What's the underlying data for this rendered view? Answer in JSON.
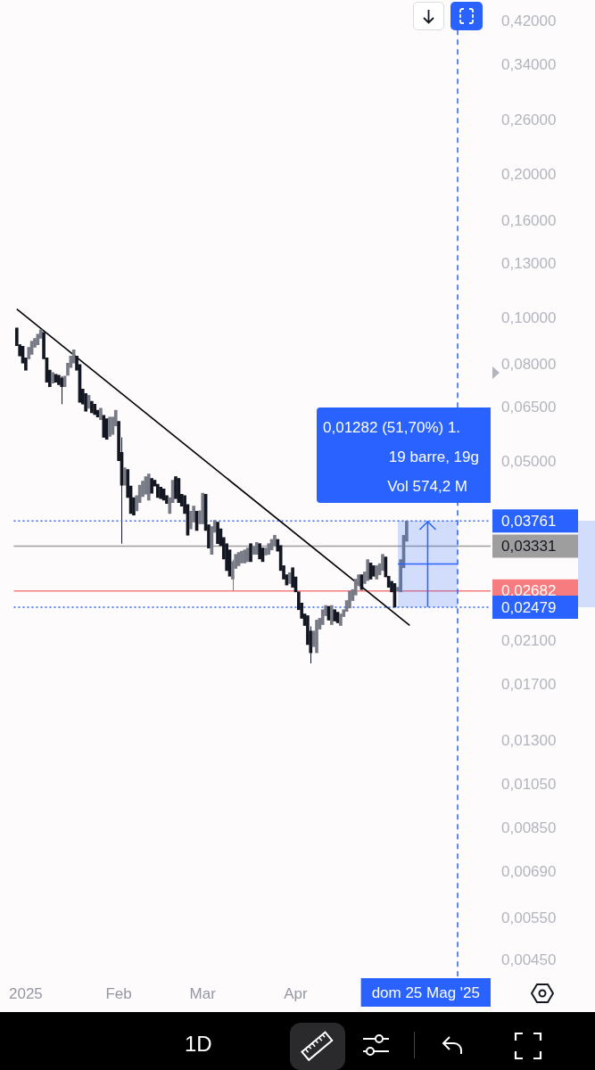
{
  "chart_data": {
    "type": "candlestick",
    "log": true,
    "xlim": [
      "2024-12-28",
      "2025-06-05"
    ],
    "xticks": [
      {
        "value": "2025-01-01",
        "label": "2025"
      },
      {
        "value": "2025-02-01",
        "label": "Feb"
      },
      {
        "value": "2025-03-01",
        "label": "Mar"
      },
      {
        "value": "2025-04-01",
        "label": "Apr"
      }
    ],
    "ylim": [
      0.00417,
      0.423
    ],
    "yticks": [
      {
        "value": 0.42,
        "label": "0,42000"
      },
      {
        "value": 0.34,
        "label": "0,34000"
      },
      {
        "value": 0.26,
        "label": "0,26000"
      },
      {
        "value": 0.2,
        "label": "0,20000"
      },
      {
        "value": 0.16,
        "label": "0,16000"
      },
      {
        "value": 0.13,
        "label": "0,13000"
      },
      {
        "value": 0.1,
        "label": "0,10000"
      },
      {
        "value": 0.08,
        "label": "0,08000"
      },
      {
        "value": 0.065,
        "label": "0,06500"
      },
      {
        "value": 0.05,
        "label": "0,05000"
      },
      {
        "value": 0.021,
        "label": "0,02100"
      },
      {
        "value": 0.017,
        "label": "0,01700"
      },
      {
        "value": 0.013,
        "label": "0,01300"
      },
      {
        "value": 0.0105,
        "label": "0,01050"
      },
      {
        "value": 0.0085,
        "label": "0,00850"
      },
      {
        "value": 0.0069,
        "label": "0,00690"
      },
      {
        "value": 0.0055,
        "label": "0,00550"
      },
      {
        "value": 0.0045,
        "label": "0,00450"
      }
    ],
    "series": [
      {
        "colors": [
          "#131722",
          "#131722",
          "#131722",
          "#131722",
          "#787b86",
          "#787b86",
          "#787b86",
          "#787b86",
          "#787b86",
          "#131722",
          "#131722",
          "#131722",
          "#787b86",
          "#131722",
          "#131722",
          "#131722",
          "#787b86",
          "#787b86",
          "#787b86",
          "#787b86",
          "#131722",
          "#131722",
          "#131722",
          "#131722",
          "#787b86",
          "#131722",
          "#131722",
          "#131722",
          "#787b86",
          "#131722",
          "#131722",
          "#787b86",
          "#787b86",
          "#787b86",
          "#131722",
          "#131722",
          "#787b86",
          "#131722",
          "#131722",
          "#131722",
          "#787b86",
          "#787b86",
          "#787b86",
          "#787b86",
          "#787b86",
          "#131722",
          "#131722",
          "#131722",
          "#131722",
          "#131722",
          "#131722",
          "#787b86",
          "#787b86",
          "#131722",
          "#131722",
          "#131722",
          "#131722",
          "#131722",
          "#787b86",
          "#787b86",
          "#131722",
          "#787b86",
          "#787b86",
          "#131722",
          "#131722",
          "#787b86",
          "#787b86",
          "#131722",
          "#131722",
          "#131722",
          "#131722",
          "#131722",
          "#787b86",
          "#787b86",
          "#787b86",
          "#787b86",
          "#787b86",
          "#787b86",
          "#131722",
          "#787b86",
          "#787b86",
          "#131722",
          "#131722",
          "#787b86",
          "#787b86",
          "#787b86",
          "#787b86",
          "#131722",
          "#131722",
          "#131722",
          "#131722",
          "#787b86",
          "#131722",
          "#131722",
          "#131722",
          "#131722",
          "#131722",
          "#131722",
          "#131722",
          "#787b86",
          "#787b86",
          "#787b86",
          "#787b86",
          "#787b86",
          "#131722",
          "#787b86",
          "#131722",
          "#131722",
          "#787b86",
          "#787b86",
          "#787b86",
          "#787b86",
          "#787b86",
          "#787b86",
          "#787b86",
          "#131722",
          "#787b86",
          "#787b86",
          "#131722",
          "#131722",
          "#787b86",
          "#787b86",
          "#787b86",
          "#131722",
          "#131722",
          "#131722",
          "#131722",
          "#787b86",
          "#787b86",
          "#787b86",
          "#787b86"
        ],
        "x": [
          "2024-12-29",
          "2024-12-30",
          "2024-12-31",
          "2025-01-01",
          "2025-01-02",
          "2025-01-03",
          "2025-01-04",
          "2025-01-05",
          "2025-01-06",
          "2025-01-07",
          "2025-01-08",
          "2025-01-09",
          "2025-01-10",
          "2025-01-11",
          "2025-01-12",
          "2025-01-13",
          "2025-01-14",
          "2025-01-15",
          "2025-01-16",
          "2025-01-17",
          "2025-01-18",
          "2025-01-19",
          "2025-01-20",
          "2025-01-21",
          "2025-01-22",
          "2025-01-23",
          "2025-01-24",
          "2025-01-25",
          "2025-01-26",
          "2025-01-27",
          "2025-01-28",
          "2025-01-29",
          "2025-01-30",
          "2025-01-31",
          "2025-02-01",
          "2025-02-02",
          "2025-02-03",
          "2025-02-04",
          "2025-02-05",
          "2025-02-06",
          "2025-02-07",
          "2025-02-08",
          "2025-02-09",
          "2025-02-10",
          "2025-02-11",
          "2025-02-12",
          "2025-02-13",
          "2025-02-14",
          "2025-02-15",
          "2025-02-16",
          "2025-02-17",
          "2025-02-18",
          "2025-02-19",
          "2025-02-20",
          "2025-02-21",
          "2025-02-22",
          "2025-02-23",
          "2025-02-24",
          "2025-02-25",
          "2025-02-26",
          "2025-02-27",
          "2025-02-28",
          "2025-03-01",
          "2025-03-02",
          "2025-03-03",
          "2025-03-04",
          "2025-03-05",
          "2025-03-06",
          "2025-03-07",
          "2025-03-08",
          "2025-03-09",
          "2025-03-10",
          "2025-03-11",
          "2025-03-12",
          "2025-03-13",
          "2025-03-14",
          "2025-03-15",
          "2025-03-16",
          "2025-03-17",
          "2025-03-18",
          "2025-03-19",
          "2025-03-20",
          "2025-03-21",
          "2025-03-22",
          "2025-03-23",
          "2025-03-24",
          "2025-03-25",
          "2025-03-26",
          "2025-03-27",
          "2025-03-28",
          "2025-03-29",
          "2025-03-30",
          "2025-03-31",
          "2025-04-01",
          "2025-04-02",
          "2025-04-03",
          "2025-04-04",
          "2025-04-05",
          "2025-04-06",
          "2025-04-07",
          "2025-04-08",
          "2025-04-09",
          "2025-04-10",
          "2025-04-11",
          "2025-04-12",
          "2025-04-13",
          "2025-04-14",
          "2025-04-15",
          "2025-04-16",
          "2025-04-17",
          "2025-04-18",
          "2025-04-19",
          "2025-04-20",
          "2025-04-21",
          "2025-04-22",
          "2025-04-23",
          "2025-04-24",
          "2025-04-25",
          "2025-04-26",
          "2025-04-27",
          "2025-04-28",
          "2025-04-29",
          "2025-04-30",
          "2025-05-01",
          "2025-05-02",
          "2025-05-03",
          "2025-05-04",
          "2025-05-05",
          "2025-05-06",
          "2025-05-07",
          "2025-05-08"
        ],
        "ohlc": [
          [
            0.0955,
            0.0955,
            0.0877,
            0.0877
          ],
          [
            0.0881,
            0.0881,
            0.0834,
            0.0834
          ],
          [
            0.0874,
            0.0874,
            0.0806,
            0.0806
          ],
          [
            0.0827,
            0.0827,
            0.0779,
            0.0779
          ],
          [
            0.0823,
            0.087,
            0.0823,
            0.087
          ],
          [
            0.0841,
            0.0896,
            0.0841,
            0.0896
          ],
          [
            0.087,
            0.0908,
            0.087,
            0.0908
          ],
          [
            0.0881,
            0.0927,
            0.0881,
            0.0927
          ],
          [
            0.0908,
            0.0947,
            0.0908,
            0.0947
          ],
          [
            0.0935,
            0.0935,
            0.0823,
            0.0823
          ],
          [
            0.0827,
            0.0827,
            0.0735,
            0.0735
          ],
          [
            0.0779,
            0.0779,
            0.0719,
            0.0719
          ],
          [
            0.0732,
            0.077,
            0.0732,
            0.077
          ],
          [
            0.0763,
            0.0763,
            0.0735,
            0.0735
          ],
          [
            0.076,
            0.076,
            0.0726,
            0.0726
          ],
          [
            0.075,
            0.0757,
            0.0661,
            0.0719
          ],
          [
            0.0719,
            0.0757,
            0.0719,
            0.0757
          ],
          [
            0.076,
            0.0806,
            0.076,
            0.0806
          ],
          [
            0.0789,
            0.0834,
            0.0789,
            0.0834
          ],
          [
            0.0806,
            0.0859,
            0.0806,
            0.0859
          ],
          [
            0.0834,
            0.0834,
            0.0779,
            0.0779
          ],
          [
            0.08,
            0.08,
            0.0667,
            0.0667
          ],
          [
            0.0711,
            0.0711,
            0.0661,
            0.0661
          ],
          [
            0.0696,
            0.0696,
            0.0639,
            0.0639
          ],
          [
            0.0648,
            0.069,
            0.0648,
            0.069
          ],
          [
            0.067,
            0.067,
            0.0634,
            0.0634
          ],
          [
            0.0661,
            0.0661,
            0.0629,
            0.0629
          ],
          [
            0.0642,
            0.0642,
            0.0621,
            0.0621
          ],
          [
            0.0613,
            0.0648,
            0.0613,
            0.0648
          ],
          [
            0.0626,
            0.0626,
            0.0563,
            0.0563
          ],
          [
            0.0616,
            0.0616,
            0.0558,
            0.0558
          ],
          [
            0.0566,
            0.0621,
            0.0566,
            0.0621
          ],
          [
            0.0571,
            0.0621,
            0.0571,
            0.0621
          ],
          [
            0.0595,
            0.0642,
            0.0595,
            0.0642
          ],
          [
            0.0608,
            0.0608,
            0.0503,
            0.0503
          ],
          [
            0.0524,
            0.0563,
            0.0337,
            0.0447
          ],
          [
            0.0447,
            0.0486,
            0.0447,
            0.0486
          ],
          [
            0.0482,
            0.0482,
            0.0421,
            0.0421
          ],
          [
            0.0445,
            0.0445,
            0.039,
            0.039
          ],
          [
            0.0421,
            0.0421,
            0.0387,
            0.0387
          ],
          [
            0.0395,
            0.0425,
            0.0395,
            0.0425
          ],
          [
            0.0411,
            0.0447,
            0.0411,
            0.0447
          ],
          [
            0.0423,
            0.0456,
            0.0423,
            0.0456
          ],
          [
            0.0428,
            0.0466,
            0.0428,
            0.0466
          ],
          [
            0.0416,
            0.0472,
            0.0416,
            0.0472
          ],
          [
            0.0462,
            0.0462,
            0.043,
            0.043
          ],
          [
            0.0458,
            0.0458,
            0.0445,
            0.0445
          ],
          [
            0.0449,
            0.0449,
            0.0421,
            0.0421
          ],
          [
            0.0443,
            0.0443,
            0.0419,
            0.0419
          ],
          [
            0.0439,
            0.0439,
            0.0416,
            0.0416
          ],
          [
            0.0425,
            0.0425,
            0.0409,
            0.0409
          ],
          [
            0.039,
            0.0421,
            0.039,
            0.0421
          ],
          [
            0.0411,
            0.0458,
            0.0411,
            0.0458
          ],
          [
            0.0466,
            0.0466,
            0.0419,
            0.0419
          ],
          [
            0.0462,
            0.0462,
            0.0411,
            0.0411
          ],
          [
            0.0428,
            0.0428,
            0.0404,
            0.0404
          ],
          [
            0.0425,
            0.0425,
            0.039,
            0.039
          ],
          [
            0.0407,
            0.0407,
            0.0351,
            0.0351
          ],
          [
            0.0362,
            0.0394,
            0.0362,
            0.0394
          ],
          [
            0.0374,
            0.0404,
            0.0374,
            0.0404
          ],
          [
            0.0394,
            0.0394,
            0.0359,
            0.0359
          ],
          [
            0.0371,
            0.0395,
            0.0371,
            0.0395
          ],
          [
            0.0371,
            0.043,
            0.0371,
            0.043
          ],
          [
            0.0428,
            0.0428,
            0.0359,
            0.0359
          ],
          [
            0.0369,
            0.0369,
            0.033,
            0.033
          ],
          [
            0.032,
            0.0366,
            0.032,
            0.0366
          ],
          [
            0.0356,
            0.0377,
            0.0356,
            0.0377
          ],
          [
            0.0374,
            0.0374,
            0.0337,
            0.0337
          ],
          [
            0.0362,
            0.0362,
            0.0334,
            0.0334
          ],
          [
            0.0347,
            0.0347,
            0.0313,
            0.0313
          ],
          [
            0.0337,
            0.0337,
            0.0296,
            0.0296
          ],
          [
            0.0327,
            0.0327,
            0.0288,
            0.0288
          ],
          [
            0.0284,
            0.0312,
            0.0268,
            0.0309
          ],
          [
            0.0299,
            0.032,
            0.0299,
            0.032
          ],
          [
            0.0303,
            0.0323,
            0.0303,
            0.0323
          ],
          [
            0.0307,
            0.0325,
            0.0307,
            0.0325
          ],
          [
            0.0307,
            0.0327,
            0.0307,
            0.0327
          ],
          [
            0.0309,
            0.033,
            0.0309,
            0.033
          ],
          [
            0.0337,
            0.0337,
            0.0309,
            0.0309
          ],
          [
            0.032,
            0.0332,
            0.032,
            0.0332
          ],
          [
            0.032,
            0.0339,
            0.032,
            0.0339
          ],
          [
            0.0337,
            0.0337,
            0.0313,
            0.0313
          ],
          [
            0.033,
            0.033,
            0.0309,
            0.0309
          ],
          [
            0.0319,
            0.033,
            0.0319,
            0.033
          ],
          [
            0.032,
            0.0337,
            0.032,
            0.0337
          ],
          [
            0.0327,
            0.0344,
            0.0327,
            0.0344
          ],
          [
            0.0334,
            0.0351,
            0.0334,
            0.0351
          ],
          [
            0.0344,
            0.0344,
            0.0325,
            0.0325
          ],
          [
            0.0334,
            0.0334,
            0.0296,
            0.0296
          ],
          [
            0.0303,
            0.0303,
            0.0284,
            0.0284
          ],
          [
            0.029,
            0.029,
            0.0276,
            0.0276
          ],
          [
            0.0278,
            0.0293,
            0.0278,
            0.0293
          ],
          [
            0.03,
            0.03,
            0.0273,
            0.0273
          ],
          [
            0.0287,
            0.0287,
            0.0267,
            0.0267
          ],
          [
            0.0267,
            0.0267,
            0.0245,
            0.0245
          ],
          [
            0.0253,
            0.0253,
            0.0235,
            0.0235
          ],
          [
            0.024,
            0.024,
            0.0227,
            0.0227
          ],
          [
            0.0238,
            0.0238,
            0.0207,
            0.0207
          ],
          [
            0.0221,
            0.0226,
            0.0189,
            0.0199
          ],
          [
            0.0205,
            0.0221,
            0.0205,
            0.0221
          ],
          [
            0.0199,
            0.0233,
            0.0199,
            0.0233
          ],
          [
            0.0223,
            0.0235,
            0.0223,
            0.0235
          ],
          [
            0.0228,
            0.0245,
            0.0228,
            0.0245
          ],
          [
            0.0238,
            0.025,
            0.0238,
            0.025
          ],
          [
            0.0249,
            0.0249,
            0.0233,
            0.0233
          ],
          [
            0.0228,
            0.025,
            0.0228,
            0.025
          ],
          [
            0.0245,
            0.0245,
            0.0232,
            0.0232
          ],
          [
            0.0242,
            0.0242,
            0.023,
            0.023
          ],
          [
            0.0227,
            0.024,
            0.0227,
            0.024
          ],
          [
            0.0237,
            0.0245,
            0.0237,
            0.0245
          ],
          [
            0.0243,
            0.0256,
            0.0243,
            0.0256
          ],
          [
            0.0247,
            0.0268,
            0.0247,
            0.0268
          ],
          [
            0.0256,
            0.027,
            0.0256,
            0.027
          ],
          [
            0.0263,
            0.0284,
            0.0263,
            0.0284
          ],
          [
            0.0275,
            0.029,
            0.0275,
            0.029
          ],
          [
            0.029,
            0.029,
            0.027,
            0.027
          ],
          [
            0.0278,
            0.0294,
            0.0278,
            0.0294
          ],
          [
            0.0282,
            0.0312,
            0.0282,
            0.0312
          ],
          [
            0.0307,
            0.0307,
            0.0284,
            0.0284
          ],
          [
            0.0303,
            0.0303,
            0.0288,
            0.0288
          ],
          [
            0.0284,
            0.0303,
            0.0284,
            0.0303
          ],
          [
            0.029,
            0.0306,
            0.029,
            0.0306
          ],
          [
            0.0296,
            0.032,
            0.0296,
            0.032
          ],
          [
            0.0316,
            0.0316,
            0.0287,
            0.0287
          ],
          [
            0.0288,
            0.0288,
            0.0273,
            0.0273
          ],
          [
            0.0281,
            0.0281,
            0.0267,
            0.0267
          ],
          [
            0.0278,
            0.0278,
            0.0248,
            0.0248
          ],
          [
            0.0268,
            0.0273,
            0.0268,
            0.0273
          ],
          [
            0.0267,
            0.0312,
            0.0267,
            0.0312
          ],
          [
            0.03,
            0.0351,
            0.03,
            0.0351
          ],
          [
            0.0341,
            0.0376,
            0.0341,
            0.0376
          ]
        ]
      },
      {
        "type": "line",
        "color": "#000000",
        "x": [
          "2024-12-29",
          "2025-05-09"
        ],
        "values": [
          0.1046,
          0.0227
        ]
      }
    ],
    "ref_lines": [
      {
        "axis": "y",
        "value": 0.03761,
        "label": "0,03761",
        "color": "#2962ff",
        "line_style": "dotted"
      },
      {
        "axis": "y",
        "value": 0.03331,
        "label": "0,03331",
        "color": "#9e9e9e",
        "line_style": "solid"
      },
      {
        "axis": "y",
        "value": 0.02682,
        "label": "0,02682",
        "color": "#f77c80",
        "line_style": "solid"
      },
      {
        "axis": "y",
        "value": 0.02479,
        "label": "0,02479",
        "color": "#2962ff",
        "line_style": "dotted"
      },
      {
        "axis": "x",
        "value": "2025-05-25",
        "label": "dom 25 Mag '25",
        "color": "#2962ff",
        "line_style": "dashed"
      }
    ],
    "annotations": [
      "0,01282 (51,70%) 1.",
      "19 barre, 19g",
      "Vol 574,2 M",
      "1D"
    ]
  }
}
